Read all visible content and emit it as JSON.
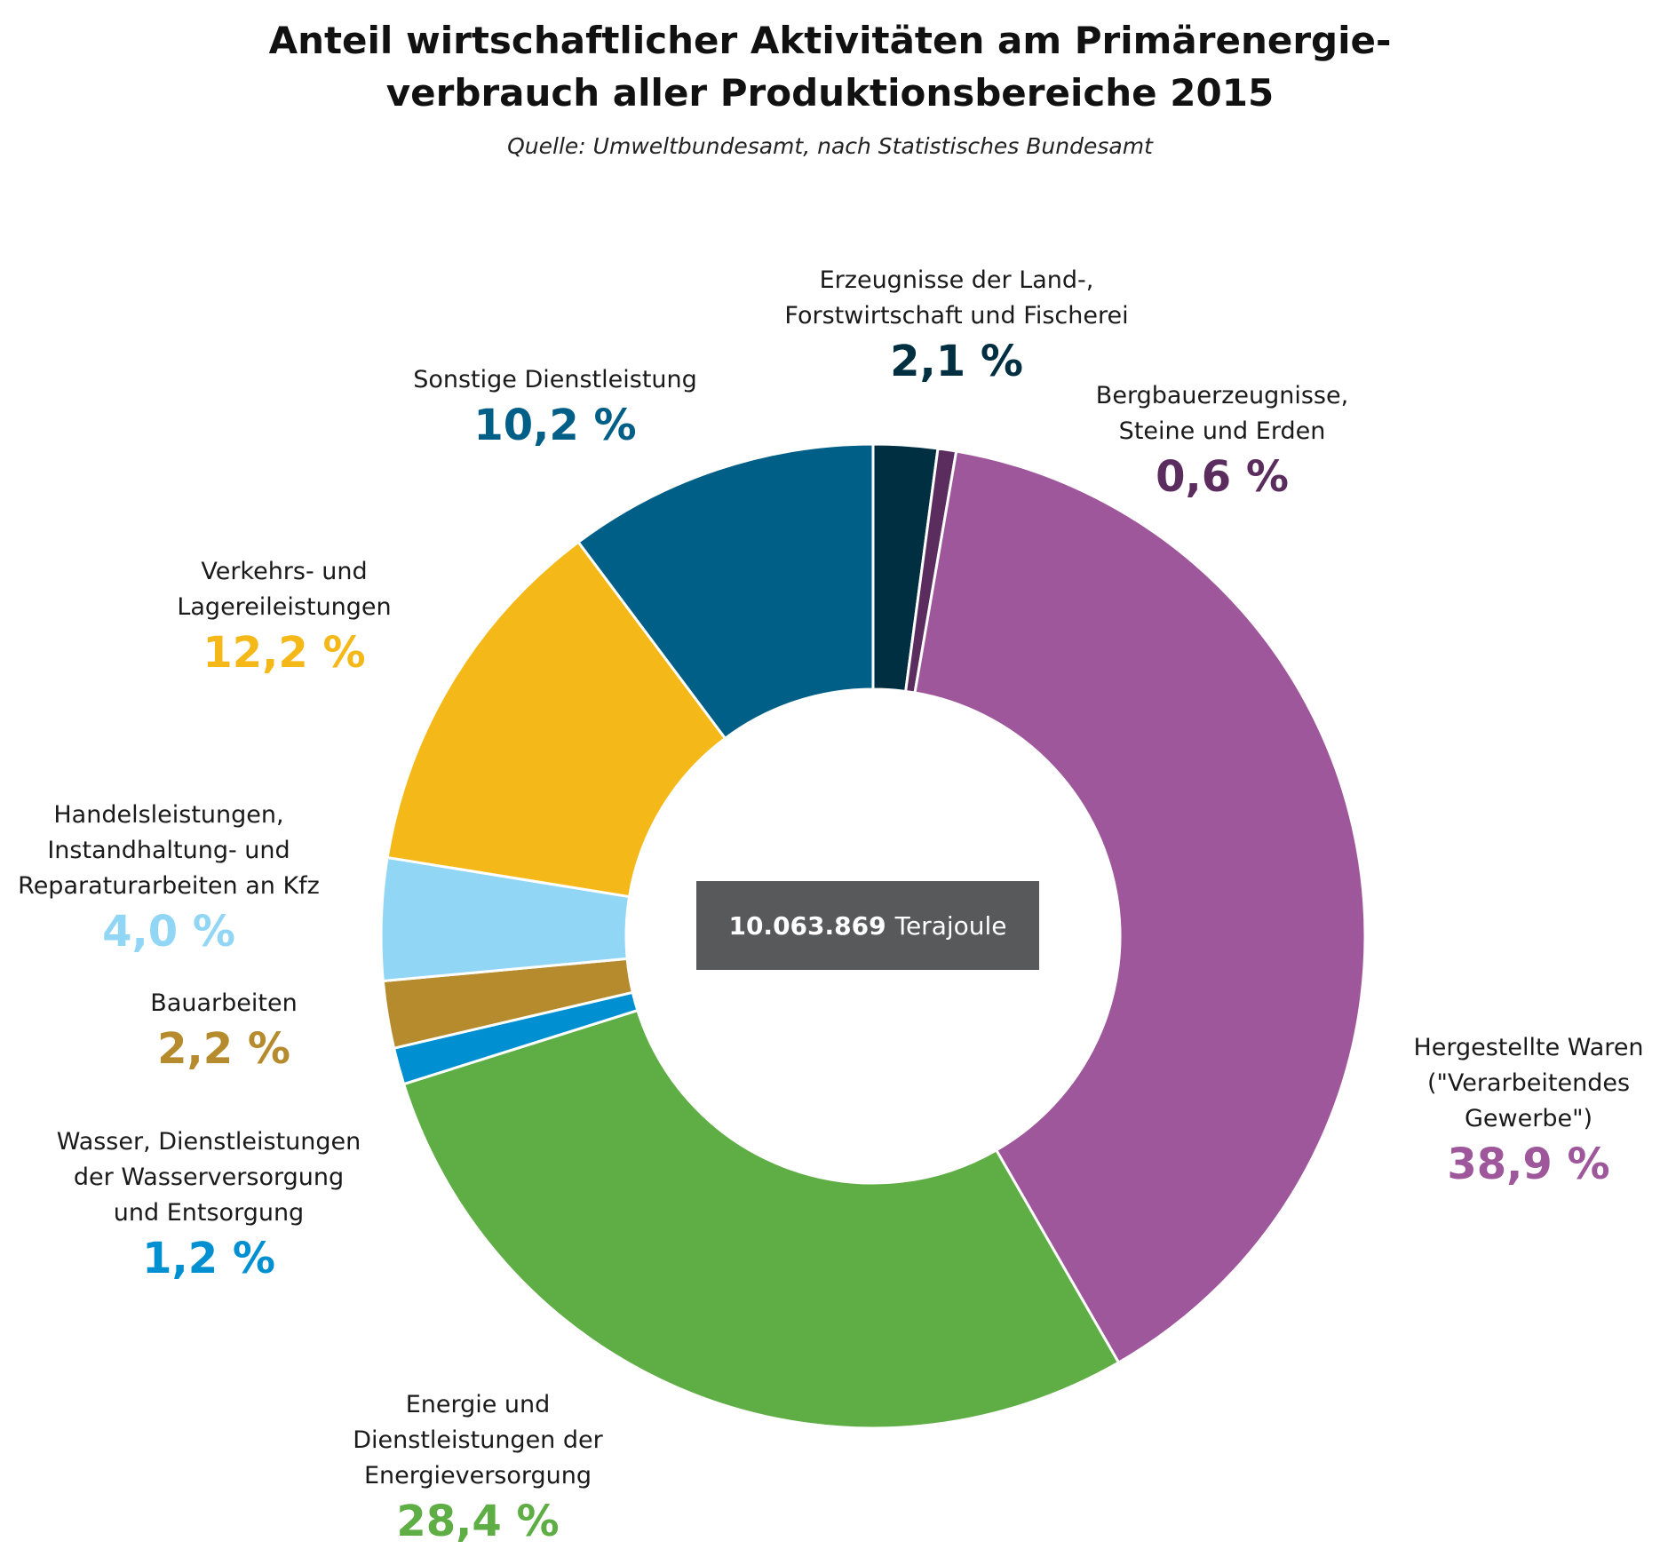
{
  "title_lines": [
    "Anteil wirtschaftlicher Aktivitäten am Primärenergie-",
    "verbrauch aller Produktionsbereiche 2015"
  ],
  "source": "Quelle: Umweltbundesamt, nach Statistisches Bundesamt",
  "center": {
    "value": "10.063.869",
    "unit": "Terajoule"
  },
  "chart_data": {
    "type": "pie",
    "donut": true,
    "total": {
      "value": 10063869,
      "unit": "Terajoule"
    },
    "slices": [
      {
        "name_lines": [
          "Erzeugnisse der Land-,",
          "Forstwirtschaft und Fischerei"
        ],
        "value": 2.1,
        "label": "2,1 %",
        "color": "#002f42"
      },
      {
        "name_lines": [
          "Bergbauerzeugnisse,",
          "Steine und Erden"
        ],
        "value": 0.6,
        "label": "0,6 %",
        "color": "#5b2d5e"
      },
      {
        "name_lines": [
          "Hergestellte Waren",
          "(\"Verarbeitendes",
          "Gewerbe\")"
        ],
        "value": 38.9,
        "label": "38,9 %",
        "color": "#9e579b"
      },
      {
        "name_lines": [
          "Energie und",
          "Dienstleistungen der",
          "Energieversorgung"
        ],
        "value": 28.4,
        "label": "28,4 %",
        "color": "#5fad45"
      },
      {
        "name_lines": [
          "Wasser, Dienstleistungen",
          "der Wasserversorgung",
          "und Entsorgung"
        ],
        "value": 1.2,
        "label": "1,2 %",
        "color": "#0090d1"
      },
      {
        "name_lines": [
          "Bauarbeiten"
        ],
        "value": 2.2,
        "label": "2,2 %",
        "color": "#b68b2e"
      },
      {
        "name_lines": [
          "Handelsleistungen,",
          "Instandhaltung- und",
          "Reparaturarbeiten an Kfz"
        ],
        "value": 4.0,
        "label": "4,0 %",
        "color": "#92d6f5"
      },
      {
        "name_lines": [
          "Verkehrs- und",
          "Lagereileistungen"
        ],
        "value": 12.2,
        "label": "12,2 %",
        "color": "#f5b819"
      },
      {
        "name_lines": [
          "Sonstige Dienstleistung"
        ],
        "value": 10.2,
        "label": "10,2 %",
        "color": "#005f87"
      }
    ]
  }
}
